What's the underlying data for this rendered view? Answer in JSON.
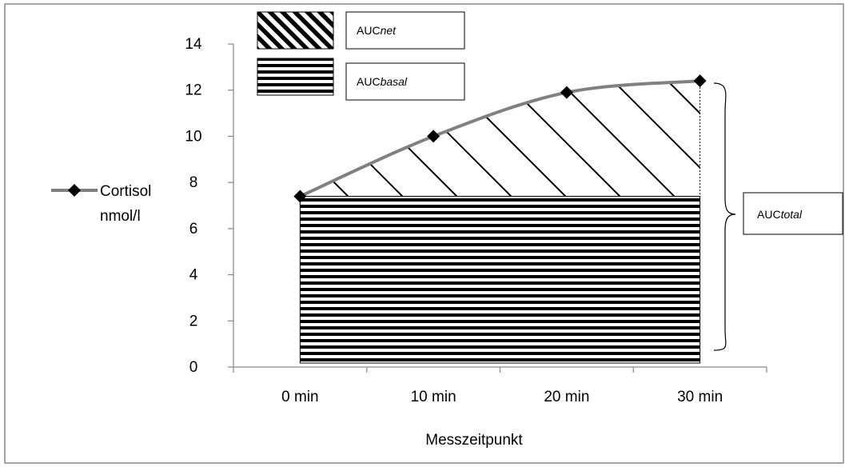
{
  "chart_data": {
    "type": "line",
    "categories": [
      "0 min",
      "10 min",
      "20 min",
      "30 min"
    ],
    "series": [
      {
        "name": "Cortisol nmol/l",
        "values": [
          7.4,
          10.0,
          11.9,
          12.4
        ],
        "color": "#808080",
        "marker": "diamond"
      }
    ],
    "xlabel": "Messzeitpunkt",
    "ylabel": "",
    "ylim": [
      0,
      14
    ],
    "yticks": [
      0,
      2,
      4,
      6,
      8,
      10,
      12,
      14
    ],
    "grid": false,
    "legend_position": "left",
    "legend": {
      "line1": "Cortisol",
      "line2": "nmol/l"
    },
    "annotations": {
      "net": {
        "prefix": "AUC",
        "suffix": "net",
        "pattern": "diagonal-hatch"
      },
      "basal": {
        "prefix": "AUC",
        "suffix": "basal",
        "pattern": "horizontal-stripes",
        "level": 7.4
      },
      "total": {
        "prefix": "AUC",
        "suffix": "total"
      }
    }
  },
  "colors": {
    "series_line": "#808080",
    "marker": "#000000",
    "axis": "#868686",
    "hatch": "#000000"
  }
}
